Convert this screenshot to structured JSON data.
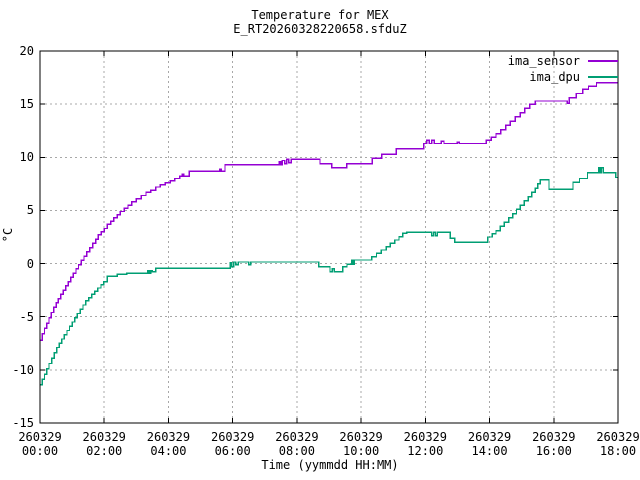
{
  "window": {
    "kind": "gnuplot-plot"
  },
  "title": "Temperature for MEX",
  "subtitle": "E_RT20260328220658.sfduZ",
  "colors": {
    "background": "#ffffff",
    "axis": "#000000",
    "grid": "#a8a8a8",
    "ima_sensor": "#9400d3",
    "ima_dpu": "#009e73"
  },
  "chart_data": {
    "type": "line",
    "step": true,
    "title": "Temperature for MEX",
    "subtitle": "E_RT20260328220658.sfduZ",
    "xlabel": "Time (yymmdd HH:MM)",
    "ylabel": "°C",
    "grid": "dashed",
    "legend_position": "top-right-inside",
    "x_unit": "hours",
    "xlim": [
      0,
      18
    ],
    "ylim": [
      -15,
      20
    ],
    "x_tick_date": "260329",
    "x_ticks": [
      0,
      2,
      4,
      6,
      8,
      10,
      12,
      14,
      16,
      18
    ],
    "x_tick_labels": [
      "00:00",
      "02:00",
      "04:00",
      "06:00",
      "08:00",
      "10:00",
      "12:00",
      "14:00",
      "16:00",
      "18:00"
    ],
    "y_ticks": [
      -15,
      -10,
      -5,
      0,
      5,
      10,
      15,
      20
    ],
    "series": [
      {
        "name": "ima_sensor",
        "color": "#9400d3",
        "points": [
          [
            0.0,
            -7.2
          ],
          [
            0.07,
            -6.6
          ],
          [
            0.14,
            -6.1
          ],
          [
            0.21,
            -5.6
          ],
          [
            0.28,
            -5.1
          ],
          [
            0.35,
            -4.6
          ],
          [
            0.43,
            -4.1
          ],
          [
            0.5,
            -3.7
          ],
          [
            0.57,
            -3.3
          ],
          [
            0.64,
            -2.9
          ],
          [
            0.72,
            -2.5
          ],
          [
            0.8,
            -2.1
          ],
          [
            0.88,
            -1.7
          ],
          [
            0.96,
            -1.3
          ],
          [
            1.04,
            -0.9
          ],
          [
            1.12,
            -0.5
          ],
          [
            1.2,
            -0.1
          ],
          [
            1.28,
            0.3
          ],
          [
            1.37,
            0.7
          ],
          [
            1.46,
            1.1
          ],
          [
            1.55,
            1.5
          ],
          [
            1.64,
            1.9
          ],
          [
            1.73,
            2.3
          ],
          [
            1.82,
            2.7
          ],
          [
            1.91,
            3.0
          ],
          [
            2.0,
            3.3
          ],
          [
            2.1,
            3.7
          ],
          [
            2.2,
            4.0
          ],
          [
            2.3,
            4.3
          ],
          [
            2.4,
            4.6
          ],
          [
            2.5,
            4.9
          ],
          [
            2.62,
            5.2
          ],
          [
            2.74,
            5.5
          ],
          [
            2.86,
            5.8
          ],
          [
            3.0,
            6.1
          ],
          [
            3.15,
            6.4
          ],
          [
            3.3,
            6.7
          ],
          [
            3.45,
            6.9
          ],
          [
            3.6,
            7.2
          ],
          [
            3.75,
            7.4
          ],
          [
            3.9,
            7.6
          ],
          [
            4.05,
            7.8
          ],
          [
            4.2,
            8.0
          ],
          [
            4.35,
            8.2
          ],
          [
            4.43,
            8.4
          ],
          [
            4.48,
            8.2
          ],
          [
            4.65,
            8.7
          ],
          [
            5.6,
            8.9
          ],
          [
            5.65,
            8.7
          ],
          [
            5.76,
            9.3
          ],
          [
            7.45,
            9.6
          ],
          [
            7.5,
            9.3
          ],
          [
            7.55,
            9.7
          ],
          [
            7.62,
            9.4
          ],
          [
            7.68,
            9.8
          ],
          [
            7.75,
            9.5
          ],
          [
            7.82,
            9.8
          ],
          [
            8.72,
            9.4
          ],
          [
            9.08,
            9.0
          ],
          [
            9.55,
            9.4
          ],
          [
            10.35,
            9.9
          ],
          [
            10.64,
            10.3
          ],
          [
            11.1,
            10.8
          ],
          [
            11.95,
            11.3
          ],
          [
            12.05,
            11.6
          ],
          [
            12.12,
            11.3
          ],
          [
            12.2,
            11.6
          ],
          [
            12.28,
            11.3
          ],
          [
            12.5,
            11.5
          ],
          [
            12.58,
            11.3
          ],
          [
            13.0,
            11.4
          ],
          [
            13.06,
            11.3
          ],
          [
            13.9,
            11.6
          ],
          [
            14.05,
            11.9
          ],
          [
            14.2,
            12.2
          ],
          [
            14.35,
            12.6
          ],
          [
            14.5,
            13.0
          ],
          [
            14.65,
            13.4
          ],
          [
            14.8,
            13.8
          ],
          [
            14.95,
            14.2
          ],
          [
            15.1,
            14.6
          ],
          [
            15.25,
            15.0
          ],
          [
            15.42,
            15.3
          ],
          [
            16.42,
            15.1
          ],
          [
            16.48,
            15.6
          ],
          [
            16.7,
            16.0
          ],
          [
            16.9,
            16.4
          ],
          [
            17.08,
            16.7
          ],
          [
            17.33,
            17.0
          ],
          [
            18.0,
            17.0
          ]
        ]
      },
      {
        "name": "ima_dpu",
        "color": "#009e73",
        "points": [
          [
            0.0,
            -11.4
          ],
          [
            0.07,
            -10.9
          ],
          [
            0.14,
            -10.4
          ],
          [
            0.21,
            -9.9
          ],
          [
            0.28,
            -9.4
          ],
          [
            0.36,
            -8.9
          ],
          [
            0.44,
            -8.4
          ],
          [
            0.52,
            -7.9
          ],
          [
            0.6,
            -7.5
          ],
          [
            0.68,
            -7.1
          ],
          [
            0.76,
            -6.7
          ],
          [
            0.84,
            -6.3
          ],
          [
            0.92,
            -5.9
          ],
          [
            1.0,
            -5.5
          ],
          [
            1.08,
            -5.1
          ],
          [
            1.16,
            -4.7
          ],
          [
            1.25,
            -4.3
          ],
          [
            1.34,
            -3.9
          ],
          [
            1.43,
            -3.5
          ],
          [
            1.52,
            -3.2
          ],
          [
            1.61,
            -2.9
          ],
          [
            1.7,
            -2.6
          ],
          [
            1.8,
            -2.3
          ],
          [
            1.9,
            -2.0
          ],
          [
            1.98,
            -1.7
          ],
          [
            2.1,
            -1.2
          ],
          [
            2.4,
            -1.0
          ],
          [
            2.7,
            -0.9
          ],
          [
            3.35,
            -0.65
          ],
          [
            3.4,
            -0.9
          ],
          [
            3.45,
            -0.65
          ],
          [
            3.5,
            -0.76
          ],
          [
            3.6,
            -0.45
          ],
          [
            5.92,
            0.1
          ],
          [
            5.97,
            -0.3
          ],
          [
            6.03,
            0.15
          ],
          [
            6.1,
            -0.1
          ],
          [
            6.17,
            0.15
          ],
          [
            6.5,
            -0.1
          ],
          [
            6.56,
            0.15
          ],
          [
            8.68,
            -0.3
          ],
          [
            9.03,
            -0.76
          ],
          [
            9.1,
            -0.5
          ],
          [
            9.16,
            -0.76
          ],
          [
            9.43,
            -0.3
          ],
          [
            9.56,
            -0.07
          ],
          [
            9.7,
            0.34
          ],
          [
            9.74,
            -0.07
          ],
          [
            9.79,
            0.34
          ],
          [
            10.33,
            0.65
          ],
          [
            10.48,
            0.97
          ],
          [
            10.63,
            1.28
          ],
          [
            10.78,
            1.59
          ],
          [
            10.91,
            1.91
          ],
          [
            11.05,
            2.22
          ],
          [
            11.18,
            2.53
          ],
          [
            11.3,
            2.85
          ],
          [
            11.42,
            2.95
          ],
          [
            12.2,
            2.6
          ],
          [
            12.26,
            2.95
          ],
          [
            12.32,
            2.6
          ],
          [
            12.38,
            2.95
          ],
          [
            12.77,
            2.4
          ],
          [
            12.92,
            2.0
          ],
          [
            13.95,
            2.5
          ],
          [
            14.08,
            2.8
          ],
          [
            14.2,
            3.1
          ],
          [
            14.33,
            3.5
          ],
          [
            14.46,
            3.9
          ],
          [
            14.6,
            4.3
          ],
          [
            14.72,
            4.7
          ],
          [
            14.84,
            5.1
          ],
          [
            14.96,
            5.5
          ],
          [
            15.08,
            5.9
          ],
          [
            15.2,
            6.3
          ],
          [
            15.32,
            6.7
          ],
          [
            15.42,
            7.1
          ],
          [
            15.5,
            7.5
          ],
          [
            15.58,
            7.9
          ],
          [
            15.85,
            7.0
          ],
          [
            16.6,
            7.65
          ],
          [
            16.8,
            8.0
          ],
          [
            17.05,
            8.55
          ],
          [
            17.4,
            9.0
          ],
          [
            17.44,
            8.55
          ],
          [
            17.48,
            9.0
          ],
          [
            17.54,
            8.55
          ],
          [
            17.93,
            8.1
          ],
          [
            18.0,
            8.1
          ]
        ]
      }
    ]
  },
  "legend": {
    "entries": [
      {
        "label": "ima_sensor"
      },
      {
        "label": "ima_dpu"
      }
    ]
  }
}
